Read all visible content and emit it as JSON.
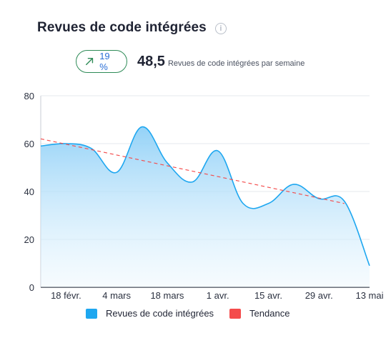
{
  "header": {
    "title": "Revues de code intégrées",
    "info_icon": "info-icon"
  },
  "kpi": {
    "trend_icon": "arrow-up-right-icon",
    "trend_percent": "19 %",
    "value": "48,5",
    "caption": "Revues de code intégrées par semaine"
  },
  "colors": {
    "series": "#1ea7f0",
    "trend": "#f44b4b",
    "badge_border": "#2e8b57"
  },
  "chart_data": {
    "type": "area",
    "title": "",
    "xlabel": "",
    "ylabel": "",
    "ylim": [
      0,
      80
    ],
    "yticks": [
      0,
      20,
      40,
      60,
      80
    ],
    "grid": true,
    "legend_position": "bottom",
    "x_tick_labels": [
      "18 févr.",
      "4 mars",
      "18 mars",
      "1 avr.",
      "15 avr.",
      "29 avr.",
      "13 mai"
    ],
    "series": [
      {
        "name": "Revues de code intégrées",
        "x": [
          "11 févr.",
          "18 févr.",
          "25 févr.",
          "4 mars",
          "11 mars",
          "18 mars",
          "25 mars",
          "1 avr.",
          "8 avr.",
          "15 avr.",
          "22 avr.",
          "29 avr.",
          "6 mai",
          "13 mai"
        ],
        "values": [
          59,
          60,
          58,
          48,
          67,
          52,
          44,
          57,
          35,
          35,
          43,
          37,
          36,
          9
        ]
      },
      {
        "name": "Tendance",
        "x": [
          "11 févr.",
          "6 mai"
        ],
        "values": [
          62,
          35
        ]
      }
    ]
  }
}
